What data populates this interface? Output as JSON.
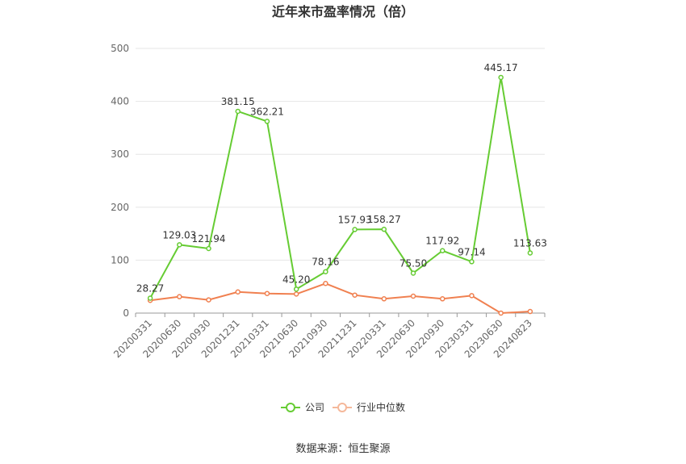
{
  "chart_data": {
    "type": "line",
    "title": "近年来市盈率情况（倍）",
    "categories": [
      "20200331",
      "20200630",
      "20200930",
      "20201231",
      "20210331",
      "20210630",
      "20210930",
      "20211231",
      "20220331",
      "20220630",
      "20220930",
      "20230331",
      "20230630",
      "20240823"
    ],
    "series": [
      {
        "name": "公司",
        "color": "#66cc33",
        "values": [
          28.27,
          129.03,
          121.94,
          381.15,
          362.21,
          45.2,
          78.16,
          157.93,
          158.27,
          75.5,
          117.92,
          97.14,
          445.17,
          113.63
        ],
        "labels": [
          "28.27",
          "129.03",
          "121.94",
          "381.15",
          "362.21",
          "45.20",
          "78.16",
          "157.93",
          "158.27",
          "75.50",
          "117.92",
          "97.14",
          "445.17",
          "113.63"
        ]
      },
      {
        "name": "行业中位数",
        "color": "#f08050",
        "values": [
          24,
          31,
          25,
          40,
          37,
          36,
          56,
          34,
          27,
          32,
          27,
          33,
          0,
          3
        ]
      }
    ],
    "ylim": [
      0,
      500
    ],
    "yticks": [
      0,
      100,
      200,
      300,
      400,
      500
    ],
    "grid": true,
    "legend_position": "bottom"
  },
  "source": "数据来源：恒生聚源"
}
